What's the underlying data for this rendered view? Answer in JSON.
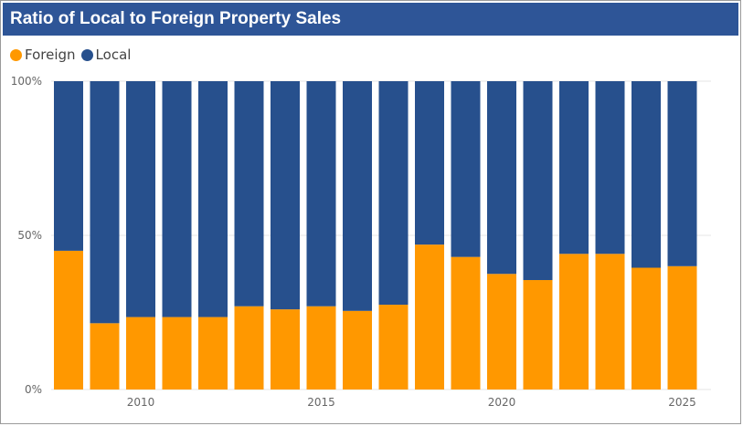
{
  "title": "Ratio of Local to Foreign Property Sales",
  "colors": {
    "header_bg": "#2e5597",
    "foreign": "#ff9800",
    "local": "#27508d",
    "grid": "#e6e6e6"
  },
  "legend": [
    {
      "label": "Foreign",
      "color": "#ff9800"
    },
    {
      "label": "Local",
      "color": "#27508d"
    }
  ],
  "chart_data": {
    "type": "bar",
    "stacked": "percent",
    "x": [
      2008,
      2009,
      2010,
      2011,
      2012,
      2013,
      2014,
      2015,
      2016,
      2017,
      2018,
      2019,
      2020,
      2021,
      2022,
      2023,
      2024,
      2025
    ],
    "x_tick_labels": [
      "2010",
      "2015",
      "2020",
      "2025"
    ],
    "x_tick_values": [
      2010,
      2015,
      2020,
      2025
    ],
    "y_tick_labels": [
      "0%",
      "50%",
      "100%"
    ],
    "y_tick_values": [
      0,
      50,
      100
    ],
    "ylim": [
      0,
      100
    ],
    "series": [
      {
        "name": "Foreign",
        "color": "#ff9800",
        "values": [
          45,
          21.5,
          23.5,
          23.5,
          23.5,
          27,
          26,
          27,
          25.5,
          27.5,
          47,
          43,
          37.5,
          35.5,
          44,
          44,
          39.5,
          40
        ]
      },
      {
        "name": "Local",
        "color": "#27508d",
        "values": [
          55,
          78.5,
          76.5,
          76.5,
          76.5,
          73,
          74,
          73,
          74.5,
          72.5,
          53,
          57,
          62.5,
          64.5,
          56,
          56,
          60.5,
          60
        ]
      }
    ],
    "legend_position": "top-left",
    "grid": true
  }
}
